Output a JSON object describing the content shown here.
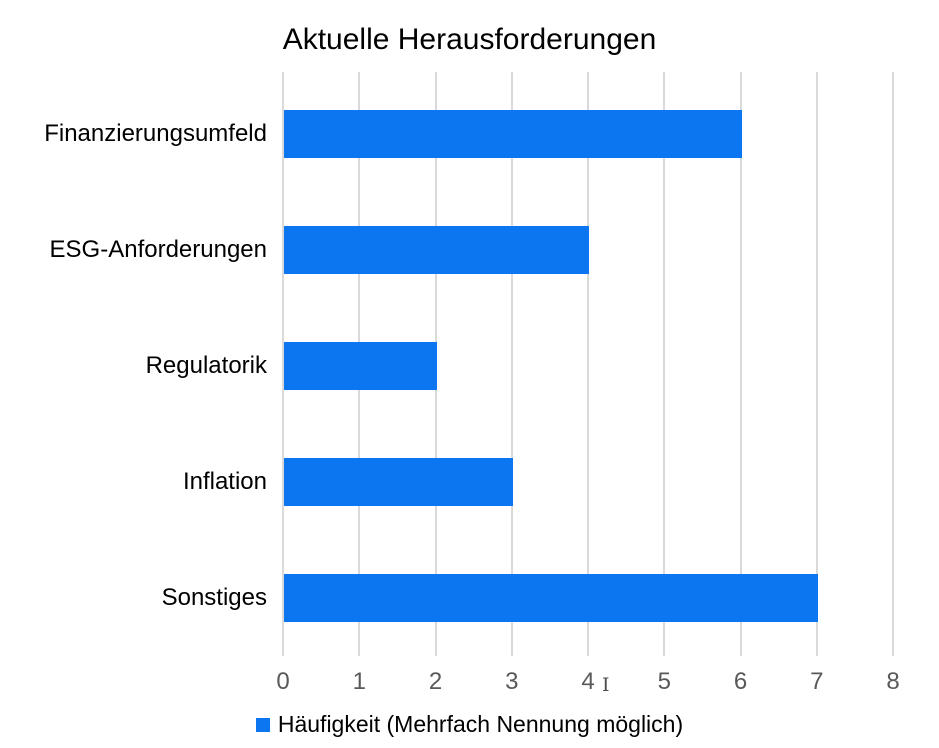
{
  "chart_data": {
    "type": "bar",
    "orientation": "horizontal",
    "title": "Aktuelle Herausforderungen",
    "categories": [
      "Finanzierungsumfeld",
      "ESG-Anforderungen",
      "Regulatorik",
      "Inflation",
      "Sonstiges"
    ],
    "values": [
      6,
      4,
      2,
      3,
      7
    ],
    "series": [
      {
        "name": "Häufigkeit (Mehrfach Nennung möglich)",
        "values": [
          6,
          4,
          2,
          3,
          7
        ]
      }
    ],
    "xlabel": "",
    "ylabel": "",
    "xlim": [
      0,
      8
    ],
    "x_ticks": [
      0,
      1,
      2,
      3,
      4,
      5,
      6,
      7,
      8
    ],
    "grid": true,
    "legend_position": "bottom"
  },
  "legend": {
    "label": "Häufigkeit (Mehrfach Nennung möglich)"
  },
  "artifact": {
    "text_cursor_glyph": "I"
  },
  "colors": {
    "bar": "#0b76f0",
    "gridline": "#d9d9d9",
    "axis_text": "#595959",
    "label_text": "#000000",
    "background": "#ffffff"
  }
}
